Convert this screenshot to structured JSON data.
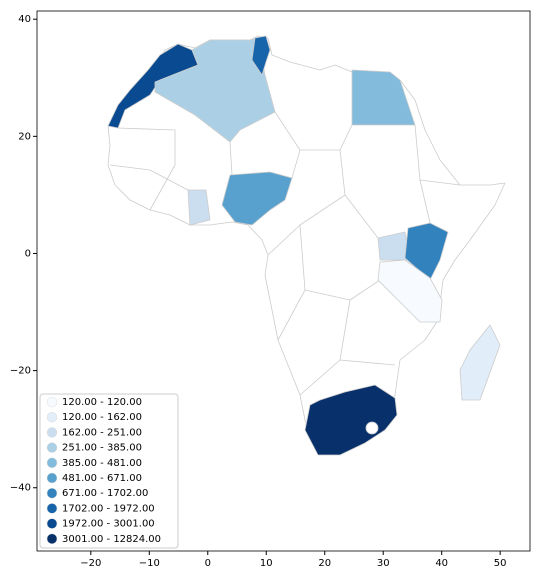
{
  "chart_data": {
    "type": "choropleth",
    "xlim": [
      -29.2,
      55.1
    ],
    "ylim": [
      -50.8,
      41.4
    ],
    "xticks": [
      {
        "value": -20,
        "label": "−20"
      },
      {
        "value": -10,
        "label": "−10"
      },
      0,
      10,
      20,
      30,
      40,
      50
    ],
    "yticks": [
      {
        "value": -40,
        "label": "−40"
      },
      {
        "value": -20,
        "label": "−20"
      },
      0,
      20,
      40
    ],
    "legend_position": "lower left",
    "legend": [
      {
        "label": "120.00 - 120.00",
        "color": "#f7fbff"
      },
      {
        "label": "120.00 - 162.00",
        "color": "#e1edf8"
      },
      {
        "label": "162.00 - 251.00",
        "color": "#cadef0"
      },
      {
        "label": "251.00 - 385.00",
        "color": "#abd0e6"
      },
      {
        "label": "385.00 - 481.00",
        "color": "#82bbdb"
      },
      {
        "label": "481.00 - 671.00",
        "color": "#58a1cf"
      },
      {
        "label": "671.00 - 1702.00",
        "color": "#3282be"
      },
      {
        "label": "1702.00 - 1972.00",
        "color": "#1764ab"
      },
      {
        "label": "1972.00 - 3001.00",
        "color": "#0a4a90"
      },
      {
        "label": "3001.00 - 12824.00",
        "color": "#08306b"
      }
    ]
  }
}
